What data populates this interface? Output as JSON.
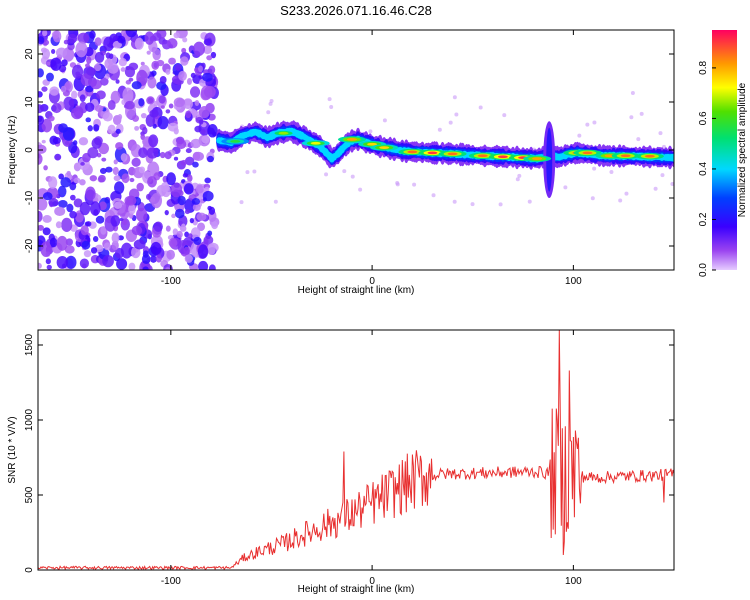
{
  "title": "S233.2026.071.16.46.C28",
  "chart_data": [
    {
      "type": "heatmap",
      "xlabel": "Height of straight line (km)",
      "ylabel": "Frequency (Hz)",
      "xlim": [
        -166,
        150
      ],
      "ylim": [
        -25,
        25
      ],
      "x_ticks": [
        "-100",
        "0",
        "100"
      ],
      "y_ticks": [
        "-20",
        "-10",
        "0",
        "10",
        "20"
      ],
      "colorbar": {
        "label": "Normalized spectral amplitude",
        "range": [
          0,
          0.95
        ],
        "ticks": [
          "0.0",
          "0.2",
          "0.4",
          "0.6",
          "0.8"
        ]
      },
      "noise_region_km": [
        -166,
        -78
      ],
      "ridge": [
        {
          "x": -76,
          "f": 2.0
        },
        {
          "x": -70,
          "f": 1.5
        },
        {
          "x": -64,
          "f": 3.0
        },
        {
          "x": -58,
          "f": 3.8
        },
        {
          "x": -52,
          "f": 2.6
        },
        {
          "x": -46,
          "f": 3.6
        },
        {
          "x": -40,
          "f": 3.9
        },
        {
          "x": -34,
          "f": 2.8
        },
        {
          "x": -30,
          "f": 1.8
        },
        {
          "x": -26,
          "f": 0.8
        },
        {
          "x": -23,
          "f": -0.5
        },
        {
          "x": -20,
          "f": -1.8
        },
        {
          "x": -17,
          "f": -0.8
        },
        {
          "x": -14,
          "f": 0.6
        },
        {
          "x": -11,
          "f": 1.8
        },
        {
          "x": -7,
          "f": 2.2
        },
        {
          "x": -3,
          "f": 1.6
        },
        {
          "x": 2,
          "f": 0.9
        },
        {
          "x": 8,
          "f": 0.4
        },
        {
          "x": 15,
          "f": -0.2
        },
        {
          "x": 25,
          "f": -0.5
        },
        {
          "x": 40,
          "f": -0.8
        },
        {
          "x": 55,
          "f": -1.2
        },
        {
          "x": 70,
          "f": -1.5
        },
        {
          "x": 82,
          "f": -1.8
        },
        {
          "x": 88,
          "f": -1.2
        },
        {
          "x": 93,
          "f": -1.5
        },
        {
          "x": 97,
          "f": -1.0
        },
        {
          "x": 102,
          "f": -0.6
        },
        {
          "x": 115,
          "f": -1.2
        },
        {
          "x": 130,
          "f": -1.3
        },
        {
          "x": 150,
          "f": -1.6
        }
      ],
      "peaks": [
        {
          "x": -68,
          "f": 1.8,
          "a": 0.6
        },
        {
          "x": -44,
          "f": 3.5,
          "a": 0.7
        },
        {
          "x": -28,
          "f": 1.4,
          "a": 0.75
        },
        {
          "x": -10,
          "f": 2.2,
          "a": 0.85
        },
        {
          "x": 0,
          "f": 1.2,
          "a": 0.8
        },
        {
          "x": 6,
          "f": 0.5,
          "a": 0.8
        },
        {
          "x": 20,
          "f": -0.4,
          "a": 0.9
        },
        {
          "x": 30,
          "f": -0.6,
          "a": 0.95
        },
        {
          "x": 40,
          "f": -0.8,
          "a": 0.9
        },
        {
          "x": 55,
          "f": -1.2,
          "a": 0.9
        },
        {
          "x": 65,
          "f": -1.4,
          "a": 0.95
        },
        {
          "x": 75,
          "f": -1.6,
          "a": 0.95
        },
        {
          "x": 82,
          "f": -1.8,
          "a": 0.85
        },
        {
          "x": 102,
          "f": -0.6,
          "a": 0.9
        },
        {
          "x": 107,
          "f": -0.6,
          "a": 0.9
        },
        {
          "x": 118,
          "f": -1.2,
          "a": 0.85
        },
        {
          "x": 126,
          "f": -1.2,
          "a": 0.9
        },
        {
          "x": 138,
          "f": -1.3,
          "a": 0.9
        }
      ],
      "disturbances": [
        {
          "x": 88,
          "f_from": -10,
          "f_to": 6
        }
      ]
    },
    {
      "type": "line",
      "xlabel": "Height of straight line (km)",
      "ylabel": "SNR (10 * V/V)",
      "xlim": [
        -166,
        150
      ],
      "ylim": [
        0,
        1600
      ],
      "x_ticks": [
        "-100",
        "0",
        "100"
      ],
      "y_ticks": [
        "0",
        "500",
        "1000",
        "1500"
      ],
      "color": "#e83030",
      "profile": [
        {
          "x": -166,
          "y": 15
        },
        {
          "x": -70,
          "y": 15
        },
        {
          "x": -64,
          "y": 80
        },
        {
          "x": -55,
          "y": 130
        },
        {
          "x": -45,
          "y": 170
        },
        {
          "x": -35,
          "y": 230
        },
        {
          "x": -25,
          "y": 290
        },
        {
          "x": -15,
          "y": 340
        },
        {
          "x": -5,
          "y": 410
        },
        {
          "x": 5,
          "y": 480
        },
        {
          "x": 15,
          "y": 560
        },
        {
          "x": 25,
          "y": 620
        },
        {
          "x": 35,
          "y": 640
        },
        {
          "x": 50,
          "y": 645
        },
        {
          "x": 65,
          "y": 650
        },
        {
          "x": 80,
          "y": 655
        },
        {
          "x": 90,
          "y": 640
        },
        {
          "x": 100,
          "y": 630
        },
        {
          "x": 110,
          "y": 615
        },
        {
          "x": 125,
          "y": 625
        },
        {
          "x": 140,
          "y": 630
        },
        {
          "x": 150,
          "y": 640
        }
      ],
      "spikes": [
        {
          "x": -14,
          "y": 790
        },
        {
          "x": 83,
          "y": 690
        },
        {
          "x": 93,
          "y": 1600
        },
        {
          "x": 95,
          "y": 100
        },
        {
          "x": 98,
          "y": 1330
        },
        {
          "x": 101,
          "y": 930
        },
        {
          "x": 145,
          "y": 450
        }
      ]
    }
  ]
}
